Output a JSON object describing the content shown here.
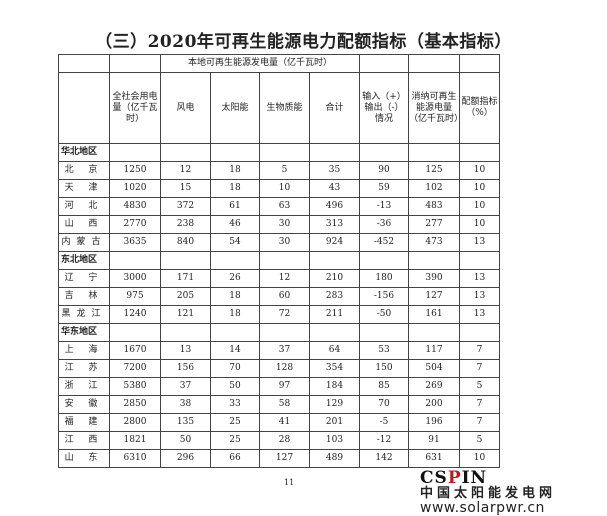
{
  "title": "（三）2020年可再生能源电力配额指标（基本指标）",
  "header": {
    "group": "本地可再生能源发电量（亿千瓦时）",
    "columns": [
      "全社会用电量（亿千瓦时）",
      "风电",
      "太阳能",
      "生物质能",
      "合计",
      "输入（+）输出（-）情况",
      "消纳可再生能源电量（亿千瓦时）",
      "配额指标（%）"
    ]
  },
  "rows": [
    {
      "region": "华北地区"
    },
    {
      "name": "北 京",
      "values": [
        "1250",
        "12",
        "18",
        "5",
        "35",
        "90",
        "125",
        "10"
      ]
    },
    {
      "name": "天 津",
      "values": [
        "1020",
        "15",
        "18",
        "10",
        "43",
        "59",
        "102",
        "10"
      ]
    },
    {
      "name": "河 北",
      "values": [
        "4830",
        "372",
        "61",
        "63",
        "496",
        "-13",
        "483",
        "10"
      ]
    },
    {
      "name": "山 西",
      "values": [
        "2770",
        "238",
        "46",
        "30",
        "313",
        "-36",
        "277",
        "10"
      ]
    },
    {
      "name": "内蒙古",
      "values": [
        "3635",
        "840",
        "54",
        "30",
        "924",
        "-452",
        "473",
        "13"
      ]
    },
    {
      "region": "东北地区"
    },
    {
      "name": "辽 宁",
      "values": [
        "3000",
        "171",
        "26",
        "12",
        "210",
        "180",
        "390",
        "13"
      ]
    },
    {
      "name": "吉 林",
      "values": [
        "975",
        "205",
        "18",
        "60",
        "283",
        "-156",
        "127",
        "13"
      ]
    },
    {
      "name": "黑龙江",
      "values": [
        "1240",
        "121",
        "18",
        "72",
        "211",
        "-50",
        "161",
        "13"
      ]
    },
    {
      "region": "华东地区"
    },
    {
      "name": "上 海",
      "values": [
        "1670",
        "13",
        "14",
        "37",
        "64",
        "53",
        "117",
        "7"
      ]
    },
    {
      "name": "江 苏",
      "values": [
        "7200",
        "156",
        "70",
        "128",
        "354",
        "150",
        "504",
        "7"
      ]
    },
    {
      "name": "浙 江",
      "values": [
        "5380",
        "37",
        "50",
        "97",
        "184",
        "85",
        "269",
        "5"
      ]
    },
    {
      "name": "安 徽",
      "values": [
        "2850",
        "38",
        "33",
        "58",
        "129",
        "70",
        "200",
        "7"
      ]
    },
    {
      "name": "福 建",
      "values": [
        "2800",
        "135",
        "25",
        "41",
        "201",
        "-5",
        "196",
        "7"
      ]
    },
    {
      "name": "江 西",
      "values": [
        "1821",
        "50",
        "25",
        "28",
        "103",
        "-12",
        "91",
        "5"
      ]
    },
    {
      "name": "山 东",
      "values": [
        "6310",
        "296",
        "66",
        "127",
        "489",
        "142",
        "631",
        "10"
      ]
    }
  ],
  "page_number": "11",
  "watermark": {
    "logo_pre": "CS",
    "logo_accent": "P",
    "logo_post": "IN",
    "cn": "中国太阳能发电网",
    "url": "www.solarpwr.cn"
  }
}
